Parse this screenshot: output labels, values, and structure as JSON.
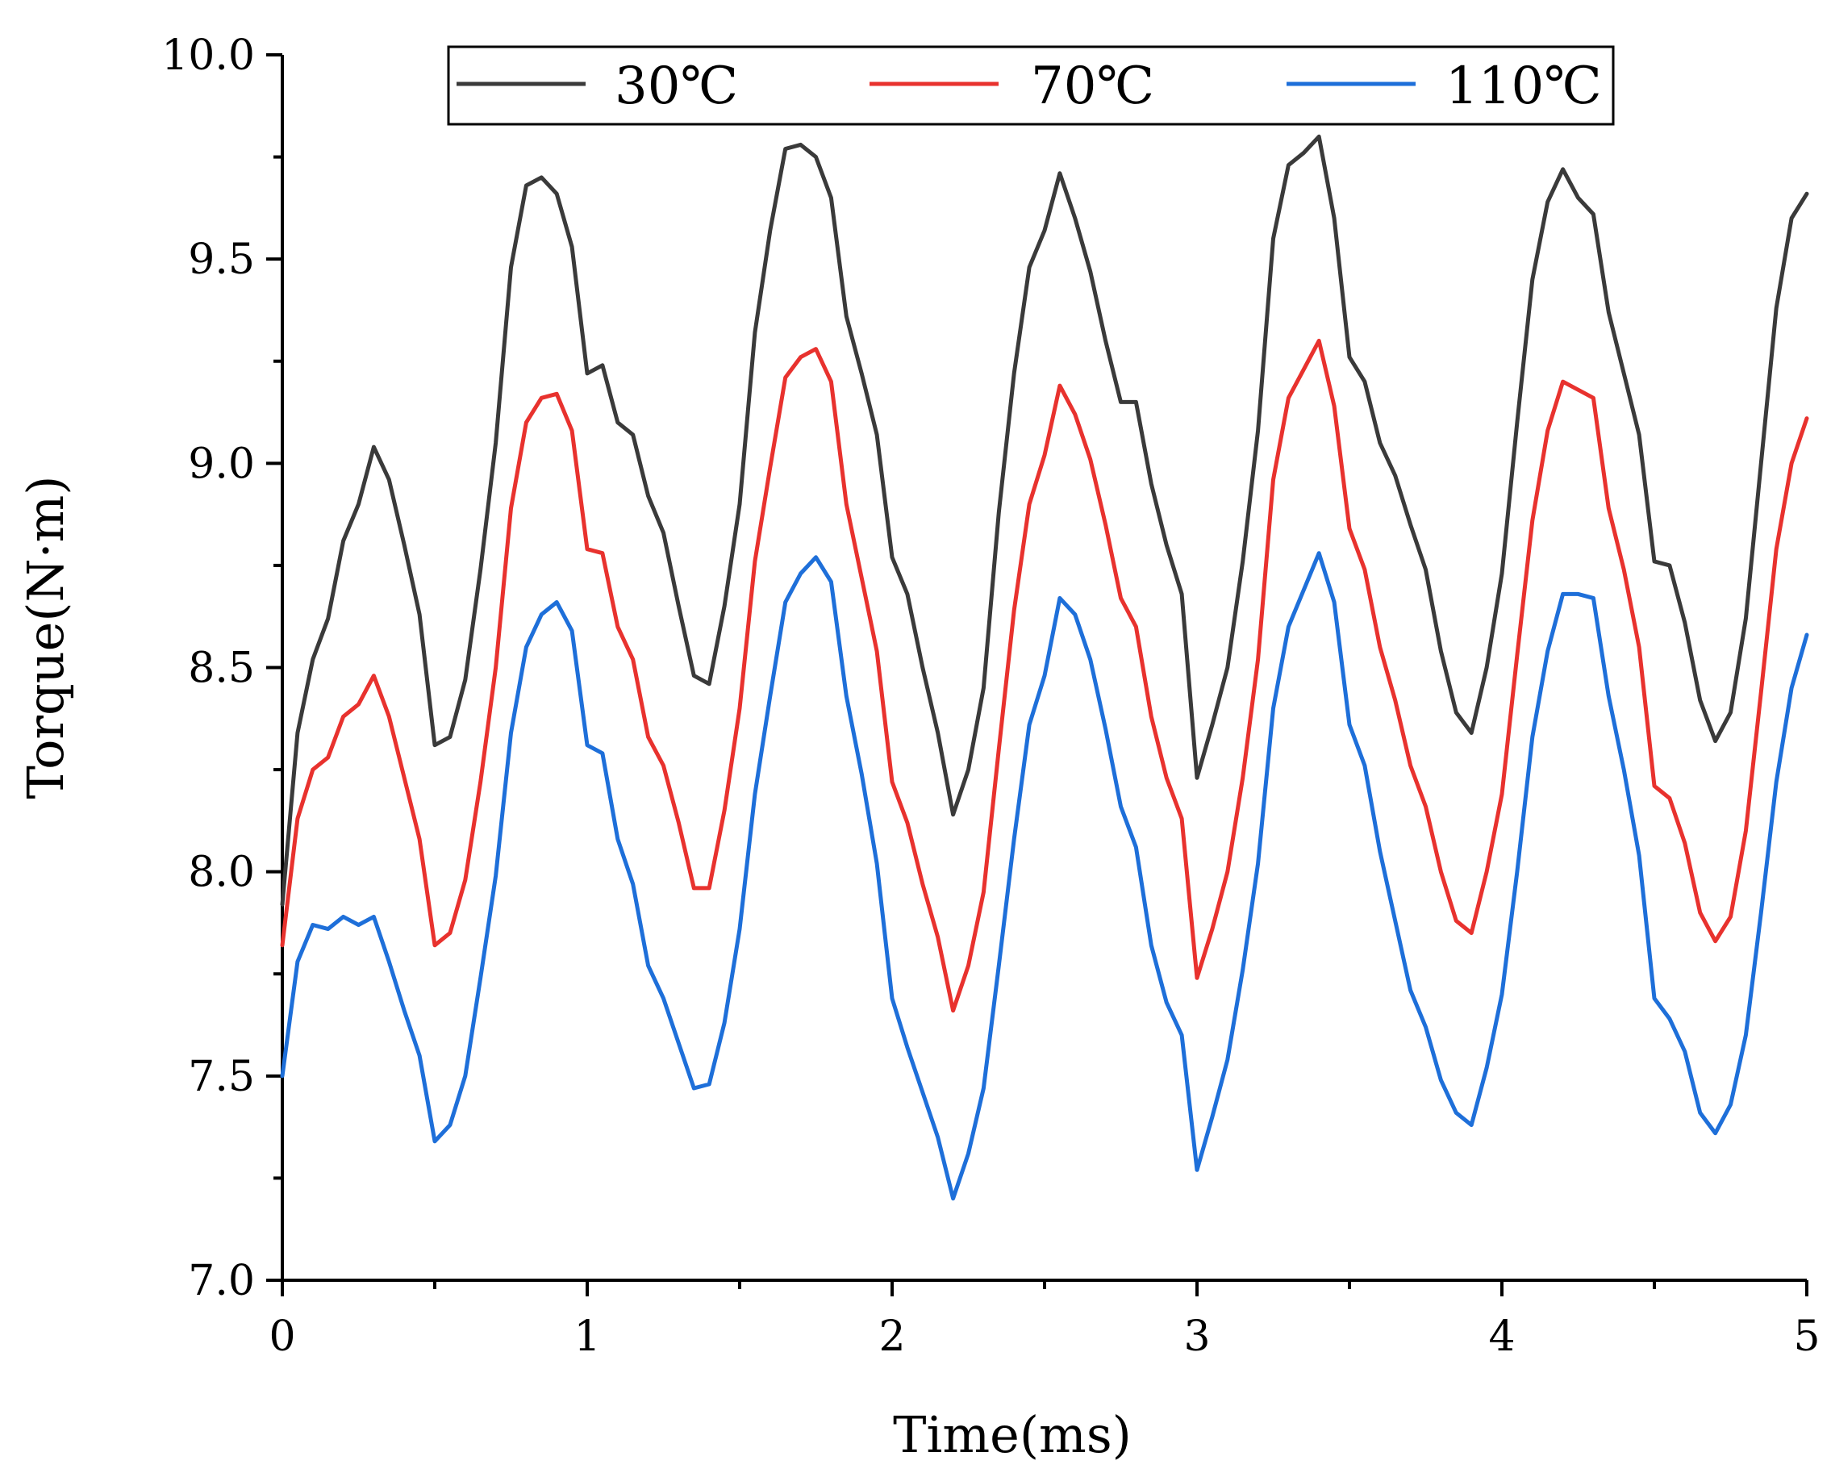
{
  "chart_data": {
    "type": "line",
    "title": "",
    "xlabel": "Time(ms)",
    "ylabel": "Torque(N·m)",
    "xlim": [
      0,
      5
    ],
    "ylim": [
      7.0,
      10.0
    ],
    "x_ticks": [
      0,
      1,
      2,
      3,
      4,
      5
    ],
    "x_tick_labels": [
      "0",
      "1",
      "2",
      "3",
      "4",
      "5"
    ],
    "x_minor_ticks": [
      0.5,
      1.5,
      2.5,
      3.5,
      4.5
    ],
    "y_ticks": [
      7.0,
      7.5,
      8.0,
      8.5,
      9.0,
      9.5,
      10.0
    ],
    "y_tick_labels": [
      "7.0",
      "7.5",
      "8.0",
      "8.5",
      "9.0",
      "9.5",
      "10.0"
    ],
    "y_minor_ticks": [
      7.25,
      7.75,
      8.25,
      8.75,
      9.25,
      9.75
    ],
    "grid": false,
    "legend_position": "top",
    "series": [
      {
        "name": "30℃",
        "color": "#3a3a3a",
        "points": [
          [
            0,
            7.92
          ],
          [
            0.05,
            8.34
          ],
          [
            0.1,
            8.52
          ],
          [
            0.15,
            8.62
          ],
          [
            0.2,
            8.81
          ],
          [
            0.25,
            8.9
          ],
          [
            0.3,
            9.04
          ],
          [
            0.35,
            8.96
          ],
          [
            0.4,
            8.8
          ],
          [
            0.45,
            8.63
          ],
          [
            0.5,
            8.31
          ],
          [
            0.55,
            8.33
          ],
          [
            0.6,
            8.47
          ],
          [
            0.65,
            8.74
          ],
          [
            0.7,
            9.05
          ],
          [
            0.75,
            9.48
          ],
          [
            0.8,
            9.68
          ],
          [
            0.85,
            9.7
          ],
          [
            0.9,
            9.66
          ],
          [
            0.95,
            9.53
          ],
          [
            1.0,
            9.22
          ],
          [
            1.05,
            9.24
          ],
          [
            1.1,
            9.1
          ],
          [
            1.15,
            9.07
          ],
          [
            1.2,
            8.92
          ],
          [
            1.25,
            8.83
          ],
          [
            1.3,
            8.65
          ],
          [
            1.35,
            8.48
          ],
          [
            1.4,
            8.46
          ],
          [
            1.45,
            8.65
          ],
          [
            1.5,
            8.9
          ],
          [
            1.55,
            9.32
          ],
          [
            1.6,
            9.57
          ],
          [
            1.65,
            9.77
          ],
          [
            1.7,
            9.78
          ],
          [
            1.75,
            9.75
          ],
          [
            1.8,
            9.65
          ],
          [
            1.85,
            9.36
          ],
          [
            1.9,
            9.22
          ],
          [
            1.95,
            9.07
          ],
          [
            2.0,
            8.77
          ],
          [
            2.05,
            8.68
          ],
          [
            2.1,
            8.5
          ],
          [
            2.15,
            8.34
          ],
          [
            2.2,
            8.14
          ],
          [
            2.25,
            8.25
          ],
          [
            2.3,
            8.45
          ],
          [
            2.35,
            8.88
          ],
          [
            2.4,
            9.22
          ],
          [
            2.45,
            9.48
          ],
          [
            2.5,
            9.57
          ],
          [
            2.55,
            9.71
          ],
          [
            2.6,
            9.6
          ],
          [
            2.65,
            9.47
          ],
          [
            2.7,
            9.3
          ],
          [
            2.75,
            9.15
          ],
          [
            2.8,
            9.15
          ],
          [
            2.85,
            8.95
          ],
          [
            2.9,
            8.8
          ],
          [
            2.95,
            8.68
          ],
          [
            3.0,
            8.23
          ],
          [
            3.05,
            8.36
          ],
          [
            3.1,
            8.5
          ],
          [
            3.15,
            8.76
          ],
          [
            3.2,
            9.08
          ],
          [
            3.25,
            9.55
          ],
          [
            3.3,
            9.73
          ],
          [
            3.35,
            9.76
          ],
          [
            3.4,
            9.8
          ],
          [
            3.45,
            9.6
          ],
          [
            3.5,
            9.26
          ],
          [
            3.55,
            9.2
          ],
          [
            3.6,
            9.05
          ],
          [
            3.65,
            8.97
          ],
          [
            3.7,
            8.85
          ],
          [
            3.75,
            8.74
          ],
          [
            3.8,
            8.54
          ],
          [
            3.85,
            8.39
          ],
          [
            3.9,
            8.34
          ],
          [
            3.95,
            8.5
          ],
          [
            4.0,
            8.73
          ],
          [
            4.05,
            9.1
          ],
          [
            4.1,
            9.45
          ],
          [
            4.15,
            9.64
          ],
          [
            4.2,
            9.72
          ],
          [
            4.25,
            9.65
          ],
          [
            4.3,
            9.61
          ],
          [
            4.35,
            9.37
          ],
          [
            4.4,
            9.22
          ],
          [
            4.45,
            9.07
          ],
          [
            4.5,
            8.76
          ],
          [
            4.55,
            8.75
          ],
          [
            4.6,
            8.61
          ],
          [
            4.65,
            8.42
          ],
          [
            4.7,
            8.32
          ],
          [
            4.75,
            8.39
          ],
          [
            4.8,
            8.62
          ],
          [
            4.85,
            9.0
          ],
          [
            4.9,
            9.38
          ],
          [
            4.95,
            9.6
          ],
          [
            5.0,
            9.66
          ]
        ]
      },
      {
        "name": "70℃",
        "color": "#e8322e",
        "points": [
          [
            0,
            7.82
          ],
          [
            0.05,
            8.13
          ],
          [
            0.1,
            8.25
          ],
          [
            0.15,
            8.28
          ],
          [
            0.2,
            8.38
          ],
          [
            0.25,
            8.41
          ],
          [
            0.3,
            8.48
          ],
          [
            0.35,
            8.38
          ],
          [
            0.4,
            8.23
          ],
          [
            0.45,
            8.08
          ],
          [
            0.5,
            7.82
          ],
          [
            0.55,
            7.85
          ],
          [
            0.6,
            7.98
          ],
          [
            0.65,
            8.22
          ],
          [
            0.7,
            8.5
          ],
          [
            0.75,
            8.89
          ],
          [
            0.8,
            9.1
          ],
          [
            0.85,
            9.16
          ],
          [
            0.9,
            9.17
          ],
          [
            0.95,
            9.08
          ],
          [
            1.0,
            8.79
          ],
          [
            1.05,
            8.78
          ],
          [
            1.1,
            8.6
          ],
          [
            1.15,
            8.52
          ],
          [
            1.2,
            8.33
          ],
          [
            1.25,
            8.26
          ],
          [
            1.3,
            8.12
          ],
          [
            1.35,
            7.96
          ],
          [
            1.4,
            7.96
          ],
          [
            1.45,
            8.15
          ],
          [
            1.5,
            8.4
          ],
          [
            1.55,
            8.76
          ],
          [
            1.6,
            8.99
          ],
          [
            1.65,
            9.21
          ],
          [
            1.7,
            9.26
          ],
          [
            1.75,
            9.28
          ],
          [
            1.8,
            9.2
          ],
          [
            1.85,
            8.9
          ],
          [
            1.9,
            8.72
          ],
          [
            1.95,
            8.54
          ],
          [
            2.0,
            8.22
          ],
          [
            2.05,
            8.12
          ],
          [
            2.1,
            7.97
          ],
          [
            2.15,
            7.84
          ],
          [
            2.2,
            7.66
          ],
          [
            2.25,
            7.77
          ],
          [
            2.3,
            7.95
          ],
          [
            2.35,
            8.3
          ],
          [
            2.4,
            8.64
          ],
          [
            2.45,
            8.9
          ],
          [
            2.5,
            9.02
          ],
          [
            2.55,
            9.19
          ],
          [
            2.6,
            9.12
          ],
          [
            2.65,
            9.01
          ],
          [
            2.7,
            8.85
          ],
          [
            2.75,
            8.67
          ],
          [
            2.8,
            8.6
          ],
          [
            2.85,
            8.38
          ],
          [
            2.9,
            8.23
          ],
          [
            2.95,
            8.13
          ],
          [
            3.0,
            7.74
          ],
          [
            3.05,
            7.86
          ],
          [
            3.1,
            8.0
          ],
          [
            3.15,
            8.23
          ],
          [
            3.2,
            8.52
          ],
          [
            3.25,
            8.96
          ],
          [
            3.3,
            9.16
          ],
          [
            3.35,
            9.23
          ],
          [
            3.4,
            9.3
          ],
          [
            3.45,
            9.14
          ],
          [
            3.5,
            8.84
          ],
          [
            3.55,
            8.74
          ],
          [
            3.6,
            8.55
          ],
          [
            3.65,
            8.42
          ],
          [
            3.7,
            8.26
          ],
          [
            3.75,
            8.16
          ],
          [
            3.8,
            8.0
          ],
          [
            3.85,
            7.88
          ],
          [
            3.9,
            7.85
          ],
          [
            3.95,
            8.0
          ],
          [
            4.0,
            8.19
          ],
          [
            4.05,
            8.53
          ],
          [
            4.1,
            8.86
          ],
          [
            4.15,
            9.08
          ],
          [
            4.2,
            9.2
          ],
          [
            4.25,
            9.18
          ],
          [
            4.3,
            9.16
          ],
          [
            4.35,
            8.89
          ],
          [
            4.4,
            8.74
          ],
          [
            4.45,
            8.55
          ],
          [
            4.5,
            8.21
          ],
          [
            4.55,
            8.18
          ],
          [
            4.6,
            8.07
          ],
          [
            4.65,
            7.9
          ],
          [
            4.7,
            7.83
          ],
          [
            4.75,
            7.89
          ],
          [
            4.8,
            8.1
          ],
          [
            4.85,
            8.44
          ],
          [
            4.9,
            8.79
          ],
          [
            4.95,
            9.0
          ],
          [
            5.0,
            9.11
          ]
        ]
      },
      {
        "name": "110℃",
        "color": "#1e6fd9",
        "points": [
          [
            0,
            7.5
          ],
          [
            0.05,
            7.78
          ],
          [
            0.1,
            7.87
          ],
          [
            0.15,
            7.86
          ],
          [
            0.2,
            7.89
          ],
          [
            0.25,
            7.87
          ],
          [
            0.3,
            7.89
          ],
          [
            0.35,
            7.78
          ],
          [
            0.4,
            7.66
          ],
          [
            0.45,
            7.55
          ],
          [
            0.5,
            7.34
          ],
          [
            0.55,
            7.38
          ],
          [
            0.6,
            7.5
          ],
          [
            0.65,
            7.74
          ],
          [
            0.7,
            7.99
          ],
          [
            0.75,
            8.34
          ],
          [
            0.8,
            8.55
          ],
          [
            0.85,
            8.63
          ],
          [
            0.9,
            8.66
          ],
          [
            0.95,
            8.59
          ],
          [
            1.0,
            8.31
          ],
          [
            1.05,
            8.29
          ],
          [
            1.1,
            8.08
          ],
          [
            1.15,
            7.97
          ],
          [
            1.2,
            7.77
          ],
          [
            1.25,
            7.69
          ],
          [
            1.3,
            7.58
          ],
          [
            1.35,
            7.47
          ],
          [
            1.4,
            7.48
          ],
          [
            1.45,
            7.63
          ],
          [
            1.5,
            7.86
          ],
          [
            1.55,
            8.19
          ],
          [
            1.6,
            8.43
          ],
          [
            1.65,
            8.66
          ],
          [
            1.7,
            8.73
          ],
          [
            1.75,
            8.77
          ],
          [
            1.8,
            8.71
          ],
          [
            1.85,
            8.43
          ],
          [
            1.9,
            8.24
          ],
          [
            1.95,
            8.02
          ],
          [
            2.0,
            7.69
          ],
          [
            2.05,
            7.57
          ],
          [
            2.1,
            7.46
          ],
          [
            2.15,
            7.35
          ],
          [
            2.2,
            7.2
          ],
          [
            2.25,
            7.31
          ],
          [
            2.3,
            7.47
          ],
          [
            2.35,
            7.77
          ],
          [
            2.4,
            8.08
          ],
          [
            2.45,
            8.36
          ],
          [
            2.5,
            8.48
          ],
          [
            2.55,
            8.67
          ],
          [
            2.6,
            8.63
          ],
          [
            2.65,
            8.52
          ],
          [
            2.7,
            8.35
          ],
          [
            2.75,
            8.16
          ],
          [
            2.8,
            8.06
          ],
          [
            2.85,
            7.82
          ],
          [
            2.9,
            7.68
          ],
          [
            2.95,
            7.6
          ],
          [
            3.0,
            7.27
          ],
          [
            3.05,
            7.4
          ],
          [
            3.1,
            7.54
          ],
          [
            3.15,
            7.76
          ],
          [
            3.2,
            8.02
          ],
          [
            3.25,
            8.4
          ],
          [
            3.3,
            8.6
          ],
          [
            3.35,
            8.69
          ],
          [
            3.4,
            8.78
          ],
          [
            3.45,
            8.66
          ],
          [
            3.5,
            8.36
          ],
          [
            3.55,
            8.26
          ],
          [
            3.6,
            8.05
          ],
          [
            3.65,
            7.88
          ],
          [
            3.7,
            7.71
          ],
          [
            3.75,
            7.62
          ],
          [
            3.8,
            7.49
          ],
          [
            3.85,
            7.41
          ],
          [
            3.9,
            7.38
          ],
          [
            3.95,
            7.52
          ],
          [
            4.0,
            7.7
          ],
          [
            4.05,
            8.0
          ],
          [
            4.1,
            8.33
          ],
          [
            4.15,
            8.54
          ],
          [
            4.2,
            8.68
          ],
          [
            4.25,
            8.68
          ],
          [
            4.3,
            8.67
          ],
          [
            4.35,
            8.43
          ],
          [
            4.4,
            8.25
          ],
          [
            4.45,
            8.04
          ],
          [
            4.5,
            7.69
          ],
          [
            4.55,
            7.64
          ],
          [
            4.6,
            7.56
          ],
          [
            4.65,
            7.41
          ],
          [
            4.7,
            7.36
          ],
          [
            4.75,
            7.43
          ],
          [
            4.8,
            7.6
          ],
          [
            4.85,
            7.9
          ],
          [
            4.9,
            8.22
          ],
          [
            4.95,
            8.45
          ],
          [
            5.0,
            8.58
          ]
        ]
      }
    ]
  }
}
